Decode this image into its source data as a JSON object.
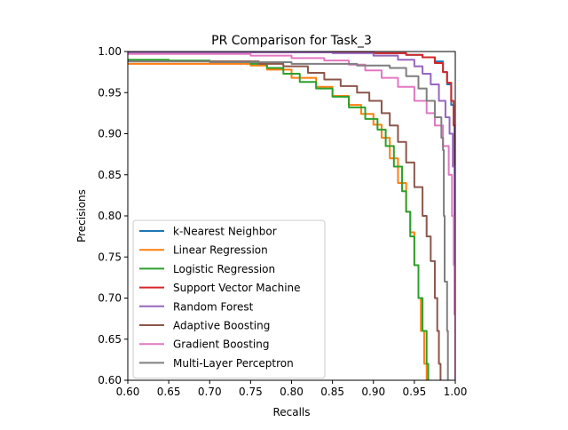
{
  "chart_data": {
    "type": "line",
    "title": "PR Comparison for Task_3",
    "xlabel": "Recalls",
    "ylabel": "Precisions",
    "xlim": [
      0.6,
      1.0
    ],
    "ylim": [
      0.6,
      1.0
    ],
    "xticks": [
      "0.60",
      "0.65",
      "0.70",
      "0.75",
      "0.80",
      "0.85",
      "0.90",
      "0.95",
      "1.00"
    ],
    "yticks": [
      "0.60",
      "0.65",
      "0.70",
      "0.75",
      "0.80",
      "0.85",
      "0.90",
      "0.95",
      "1.00"
    ],
    "grid": false,
    "legend_position": "lower-left",
    "series": [
      {
        "name": "k-Nearest Neighbor",
        "color": "#1f77b4",
        "points": [
          [
            0.6,
            0.998
          ],
          [
            0.7,
            0.999
          ],
          [
            0.8,
            0.999
          ],
          [
            0.9,
            0.998
          ],
          [
            0.94,
            0.996
          ],
          [
            0.96,
            0.993
          ],
          [
            0.975,
            0.988
          ],
          [
            0.985,
            0.975
          ],
          [
            0.99,
            0.96
          ],
          [
            0.995,
            0.935
          ],
          [
            0.998,
            0.91
          ],
          [
            0.999,
            0.85
          ],
          [
            1.0,
            0.78
          ],
          [
            1.0,
            0.7
          ],
          [
            1.0,
            0.6
          ]
        ]
      },
      {
        "name": "Linear Regression",
        "color": "#ff7f0e",
        "points": [
          [
            0.6,
            0.985
          ],
          [
            0.65,
            0.985
          ],
          [
            0.7,
            0.985
          ],
          [
            0.75,
            0.983
          ],
          [
            0.77,
            0.978
          ],
          [
            0.8,
            0.968
          ],
          [
            0.83,
            0.957
          ],
          [
            0.85,
            0.946
          ],
          [
            0.87,
            0.935
          ],
          [
            0.885,
            0.924
          ],
          [
            0.9,
            0.911
          ],
          [
            0.91,
            0.895
          ],
          [
            0.92,
            0.87
          ],
          [
            0.93,
            0.84
          ],
          [
            0.94,
            0.805
          ],
          [
            0.945,
            0.78
          ],
          [
            0.95,
            0.74
          ],
          [
            0.955,
            0.7
          ],
          [
            0.958,
            0.66
          ],
          [
            0.962,
            0.62
          ],
          [
            0.965,
            0.6
          ]
        ]
      },
      {
        "name": "Logistic Regression",
        "color": "#2ca02c",
        "points": [
          [
            0.6,
            0.99
          ],
          [
            0.65,
            0.989
          ],
          [
            0.7,
            0.988
          ],
          [
            0.75,
            0.985
          ],
          [
            0.77,
            0.98
          ],
          [
            0.79,
            0.973
          ],
          [
            0.81,
            0.963
          ],
          [
            0.83,
            0.955
          ],
          [
            0.85,
            0.945
          ],
          [
            0.87,
            0.932
          ],
          [
            0.89,
            0.918
          ],
          [
            0.905,
            0.905
          ],
          [
            0.915,
            0.885
          ],
          [
            0.925,
            0.86
          ],
          [
            0.935,
            0.83
          ],
          [
            0.94,
            0.805
          ],
          [
            0.945,
            0.775
          ],
          [
            0.95,
            0.74
          ],
          [
            0.955,
            0.7
          ],
          [
            0.96,
            0.66
          ],
          [
            0.965,
            0.62
          ],
          [
            0.967,
            0.6
          ]
        ]
      },
      {
        "name": "Support Vector Machine",
        "color": "#d62728",
        "points": [
          [
            0.6,
            0.999
          ],
          [
            0.7,
            0.999
          ],
          [
            0.8,
            0.999
          ],
          [
            0.9,
            0.998
          ],
          [
            0.94,
            0.996
          ],
          [
            0.96,
            0.993
          ],
          [
            0.975,
            0.986
          ],
          [
            0.985,
            0.975
          ],
          [
            0.99,
            0.962
          ],
          [
            0.995,
            0.94
          ],
          [
            0.998,
            0.91
          ],
          [
            1.0,
            0.86
          ],
          [
            1.0,
            0.78
          ],
          [
            1.0,
            0.6
          ]
        ]
      },
      {
        "name": "Random Forest",
        "color": "#9467bd",
        "points": [
          [
            0.6,
            0.999
          ],
          [
            0.75,
            0.999
          ],
          [
            0.85,
            0.998
          ],
          [
            0.9,
            0.995
          ],
          [
            0.93,
            0.99
          ],
          [
            0.95,
            0.982
          ],
          [
            0.96,
            0.973
          ],
          [
            0.97,
            0.96
          ],
          [
            0.98,
            0.94
          ],
          [
            0.988,
            0.92
          ],
          [
            0.993,
            0.9
          ],
          [
            0.997,
            0.86
          ],
          [
            0.999,
            0.8
          ],
          [
            1.0,
            0.74
          ],
          [
            1.0,
            0.6
          ]
        ]
      },
      {
        "name": "Adaptive Boosting",
        "color": "#8c564b",
        "points": [
          [
            0.6,
            0.988
          ],
          [
            0.7,
            0.988
          ],
          [
            0.76,
            0.985
          ],
          [
            0.79,
            0.982
          ],
          [
            0.82,
            0.974
          ],
          [
            0.84,
            0.966
          ],
          [
            0.86,
            0.958
          ],
          [
            0.88,
            0.95
          ],
          [
            0.895,
            0.94
          ],
          [
            0.91,
            0.925
          ],
          [
            0.92,
            0.91
          ],
          [
            0.93,
            0.89
          ],
          [
            0.94,
            0.865
          ],
          [
            0.95,
            0.835
          ],
          [
            0.96,
            0.8
          ],
          [
            0.965,
            0.775
          ],
          [
            0.97,
            0.745
          ],
          [
            0.975,
            0.7
          ],
          [
            0.978,
            0.66
          ],
          [
            0.98,
            0.62
          ],
          [
            0.982,
            0.6
          ]
        ]
      },
      {
        "name": "Gradient Boosting",
        "color": "#e377c2",
        "points": [
          [
            0.6,
            0.997
          ],
          [
            0.7,
            0.997
          ],
          [
            0.75,
            0.995
          ],
          [
            0.8,
            0.992
          ],
          [
            0.84,
            0.989
          ],
          [
            0.87,
            0.984
          ],
          [
            0.89,
            0.977
          ],
          [
            0.91,
            0.968
          ],
          [
            0.93,
            0.957
          ],
          [
            0.95,
            0.94
          ],
          [
            0.965,
            0.925
          ],
          [
            0.975,
            0.91
          ],
          [
            0.985,
            0.885
          ],
          [
            0.992,
            0.85
          ],
          [
            0.996,
            0.8
          ],
          [
            0.998,
            0.74
          ],
          [
            0.999,
            0.68
          ],
          [
            1.0,
            0.6
          ]
        ]
      },
      {
        "name": "Multi-Layer Perceptron",
        "color": "#7f7f7f",
        "points": [
          [
            0.6,
            0.988
          ],
          [
            0.7,
            0.987
          ],
          [
            0.8,
            0.985
          ],
          [
            0.88,
            0.983
          ],
          [
            0.92,
            0.98
          ],
          [
            0.94,
            0.97
          ],
          [
            0.955,
            0.955
          ],
          [
            0.965,
            0.94
          ],
          [
            0.975,
            0.92
          ],
          [
            0.983,
            0.895
          ],
          [
            0.985,
            0.88
          ],
          [
            0.986,
            0.8
          ],
          [
            0.987,
            0.72
          ],
          [
            0.99,
            0.66
          ],
          [
            0.991,
            0.6
          ]
        ]
      }
    ]
  }
}
